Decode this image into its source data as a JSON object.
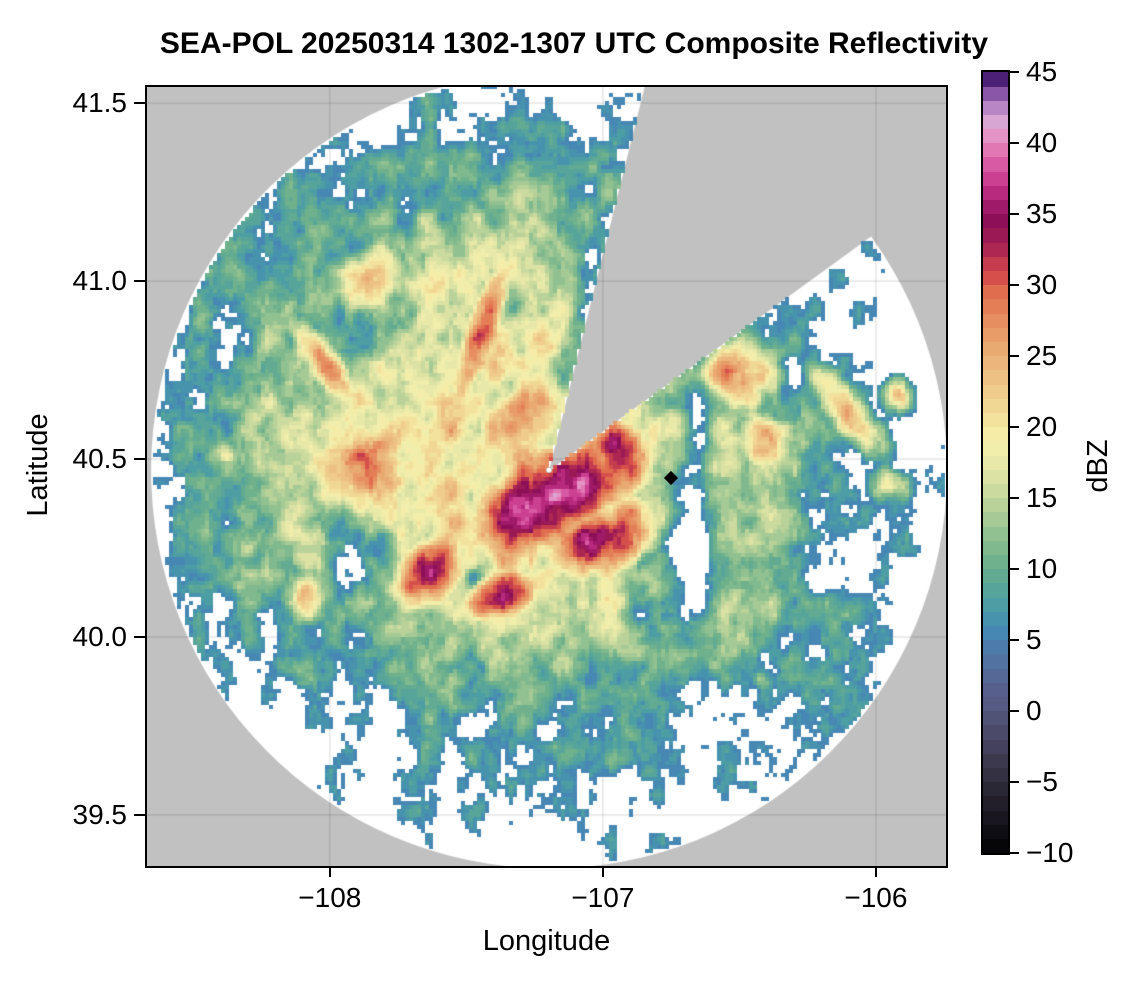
{
  "chart_data": {
    "type": "heatmap",
    "title": "SEA-POL 20250314 1302-1307 UTC Composite Reflectivity",
    "xlabel": "Longitude",
    "ylabel": "Latitude",
    "xlim": [
      -108.677,
      -105.736
    ],
    "ylim": [
      39.351,
      41.551
    ],
    "grid": true,
    "x_ticks": [
      -108,
      -107,
      -106
    ],
    "x_tick_labels": [
      "−108",
      "−107",
      "−106"
    ],
    "y_ticks": [
      41.5,
      41.0,
      40.5,
      40.0,
      39.5
    ],
    "y_tick_labels": [
      "41.5",
      "41.0",
      "40.5",
      "40.0",
      "39.5"
    ],
    "colors": {
      "outside_range_bg": "#c1c1c1",
      "inside_range_bg": "#ffffff",
      "gridline": "rgba(0,0,0,0.10)",
      "frame": "#000000"
    },
    "colorbar": {
      "label": "dBZ",
      "min": -10,
      "max": 45,
      "ticks": [
        45,
        40,
        35,
        30,
        25,
        20,
        15,
        10,
        5,
        0,
        -5,
        -10
      ],
      "tick_labels": [
        "45",
        "40",
        "35",
        "30",
        "25",
        "20",
        "15",
        "10",
        "5",
        "0",
        "−5",
        "−10"
      ],
      "band_colors_low_to_high": [
        "#060608",
        "#100e15",
        "#191620",
        "#221f2b",
        "#2b2836",
        "#343142",
        "#3c394f",
        "#44415c",
        "#4b4a69",
        "#515376",
        "#565b83",
        "#575f8d",
        "#556997",
        "#5272a1",
        "#4d7cab",
        "#4787b4",
        "#4793ae",
        "#4d9da4",
        "#57a59a",
        "#62ab92",
        "#6fb18c",
        "#80b98e",
        "#92c191",
        "#a5ca95",
        "#b9d299",
        "#cbda9e",
        "#dbe2a3",
        "#e8e9a8",
        "#f1eeac",
        "#f5eca7",
        "#f3e29d",
        "#f1d794",
        "#efcc8b",
        "#edc183",
        "#ebb67b",
        "#e9aa72",
        "#e89d69",
        "#e68e60",
        "#e37e57",
        "#e16d4f",
        "#d5504b",
        "#c43c4d",
        "#ad2752",
        "#9b1955",
        "#8c0f58",
        "#a01a6a",
        "#b82a7e",
        "#cc4092",
        "#d95aa4",
        "#e178b4",
        "#e493c6",
        "#d8a6d2",
        "#b886c5",
        "#8a57a8",
        "#4b2076"
      ]
    },
    "radar": {
      "center_lon": -107.197,
      "center_lat": 40.468,
      "range_radius_px": 398,
      "blocked_sector_azimuth_deg": [
        14,
        54
      ],
      "location_dot_color": "#ffffff"
    },
    "station_marker": {
      "lon": -106.75,
      "lat": 40.447,
      "shape": "diamond",
      "color": "#000000"
    },
    "echo_field": {
      "threshold_dbz": 5,
      "noise_octaves": [
        [
          12,
          4.2
        ],
        [
          27,
          2.6
        ],
        [
          58,
          1.7
        ]
      ],
      "blobs": [
        [
          -107.35,
          40.55,
          0.8,
          0.55,
          -10,
          21
        ],
        [
          -107.15,
          40.12,
          0.7,
          0.2,
          -5,
          18
        ],
        [
          -108.05,
          40.45,
          0.34,
          0.4,
          0,
          17
        ],
        [
          -107.45,
          41.0,
          0.45,
          0.22,
          20,
          17
        ],
        [
          -106.55,
          40.48,
          0.33,
          0.3,
          0,
          16
        ],
        [
          -107.2,
          40.38,
          0.32,
          0.13,
          20,
          39
        ],
        [
          -106.93,
          40.51,
          0.11,
          0.08,
          -25,
          37
        ],
        [
          -107.0,
          40.28,
          0.2,
          0.09,
          15,
          37
        ],
        [
          -107.63,
          40.19,
          0.12,
          0.08,
          30,
          34
        ],
        [
          -107.37,
          40.12,
          0.12,
          0.06,
          10,
          33
        ],
        [
          -107.45,
          40.85,
          0.055,
          0.21,
          -25,
          31
        ],
        [
          -108.02,
          40.77,
          0.13,
          0.05,
          -45,
          29
        ],
        [
          -107.85,
          40.45,
          0.22,
          0.17,
          10,
          26
        ],
        [
          -107.27,
          40.64,
          0.2,
          0.12,
          15,
          28
        ],
        [
          -106.5,
          40.74,
          0.12,
          0.09,
          0,
          28
        ],
        [
          -106.42,
          40.55,
          0.09,
          0.07,
          -20,
          26
        ],
        [
          -106.1,
          40.63,
          0.14,
          0.045,
          -42,
          26
        ],
        [
          -105.95,
          40.43,
          0.07,
          0.04,
          0,
          20
        ],
        [
          -105.92,
          40.68,
          0.05,
          0.04,
          -30,
          24
        ],
        [
          -108.38,
          40.52,
          0.05,
          0.04,
          0,
          14
        ],
        [
          -108.3,
          40.26,
          0.06,
          0.05,
          0,
          14
        ],
        [
          -108.1,
          40.12,
          0.07,
          0.07,
          -20,
          23
        ],
        [
          -106.65,
          39.98,
          0.04,
          0.03,
          0,
          13
        ],
        [
          -106.42,
          39.88,
          0.03,
          0.03,
          0,
          12
        ],
        [
          -107.85,
          41.0,
          0.12,
          0.08,
          20,
          25
        ],
        [
          -107.87,
          40.86,
          0.09,
          0.07,
          0,
          -8
        ],
        [
          -107.08,
          40.9,
          0.035,
          0.17,
          -17,
          -9
        ],
        [
          -107.32,
          40.93,
          0.03,
          0.03,
          0,
          -9
        ],
        [
          -106.66,
          40.35,
          0.04,
          0.3,
          0,
          -11
        ],
        [
          -106.78,
          40.28,
          0.11,
          0.13,
          0,
          -6
        ],
        [
          -106.85,
          40.07,
          0.05,
          0.04,
          0,
          -13
        ],
        [
          -107.47,
          40.17,
          0.02,
          0.02,
          0,
          -9
        ],
        [
          -107.33,
          40.7,
          0.03,
          0.04,
          0,
          -10
        ],
        [
          -107.93,
          40.25,
          0.07,
          0.1,
          0,
          -12
        ],
        [
          -107.42,
          40.24,
          0.03,
          0.05,
          0,
          -8
        ]
      ]
    }
  }
}
